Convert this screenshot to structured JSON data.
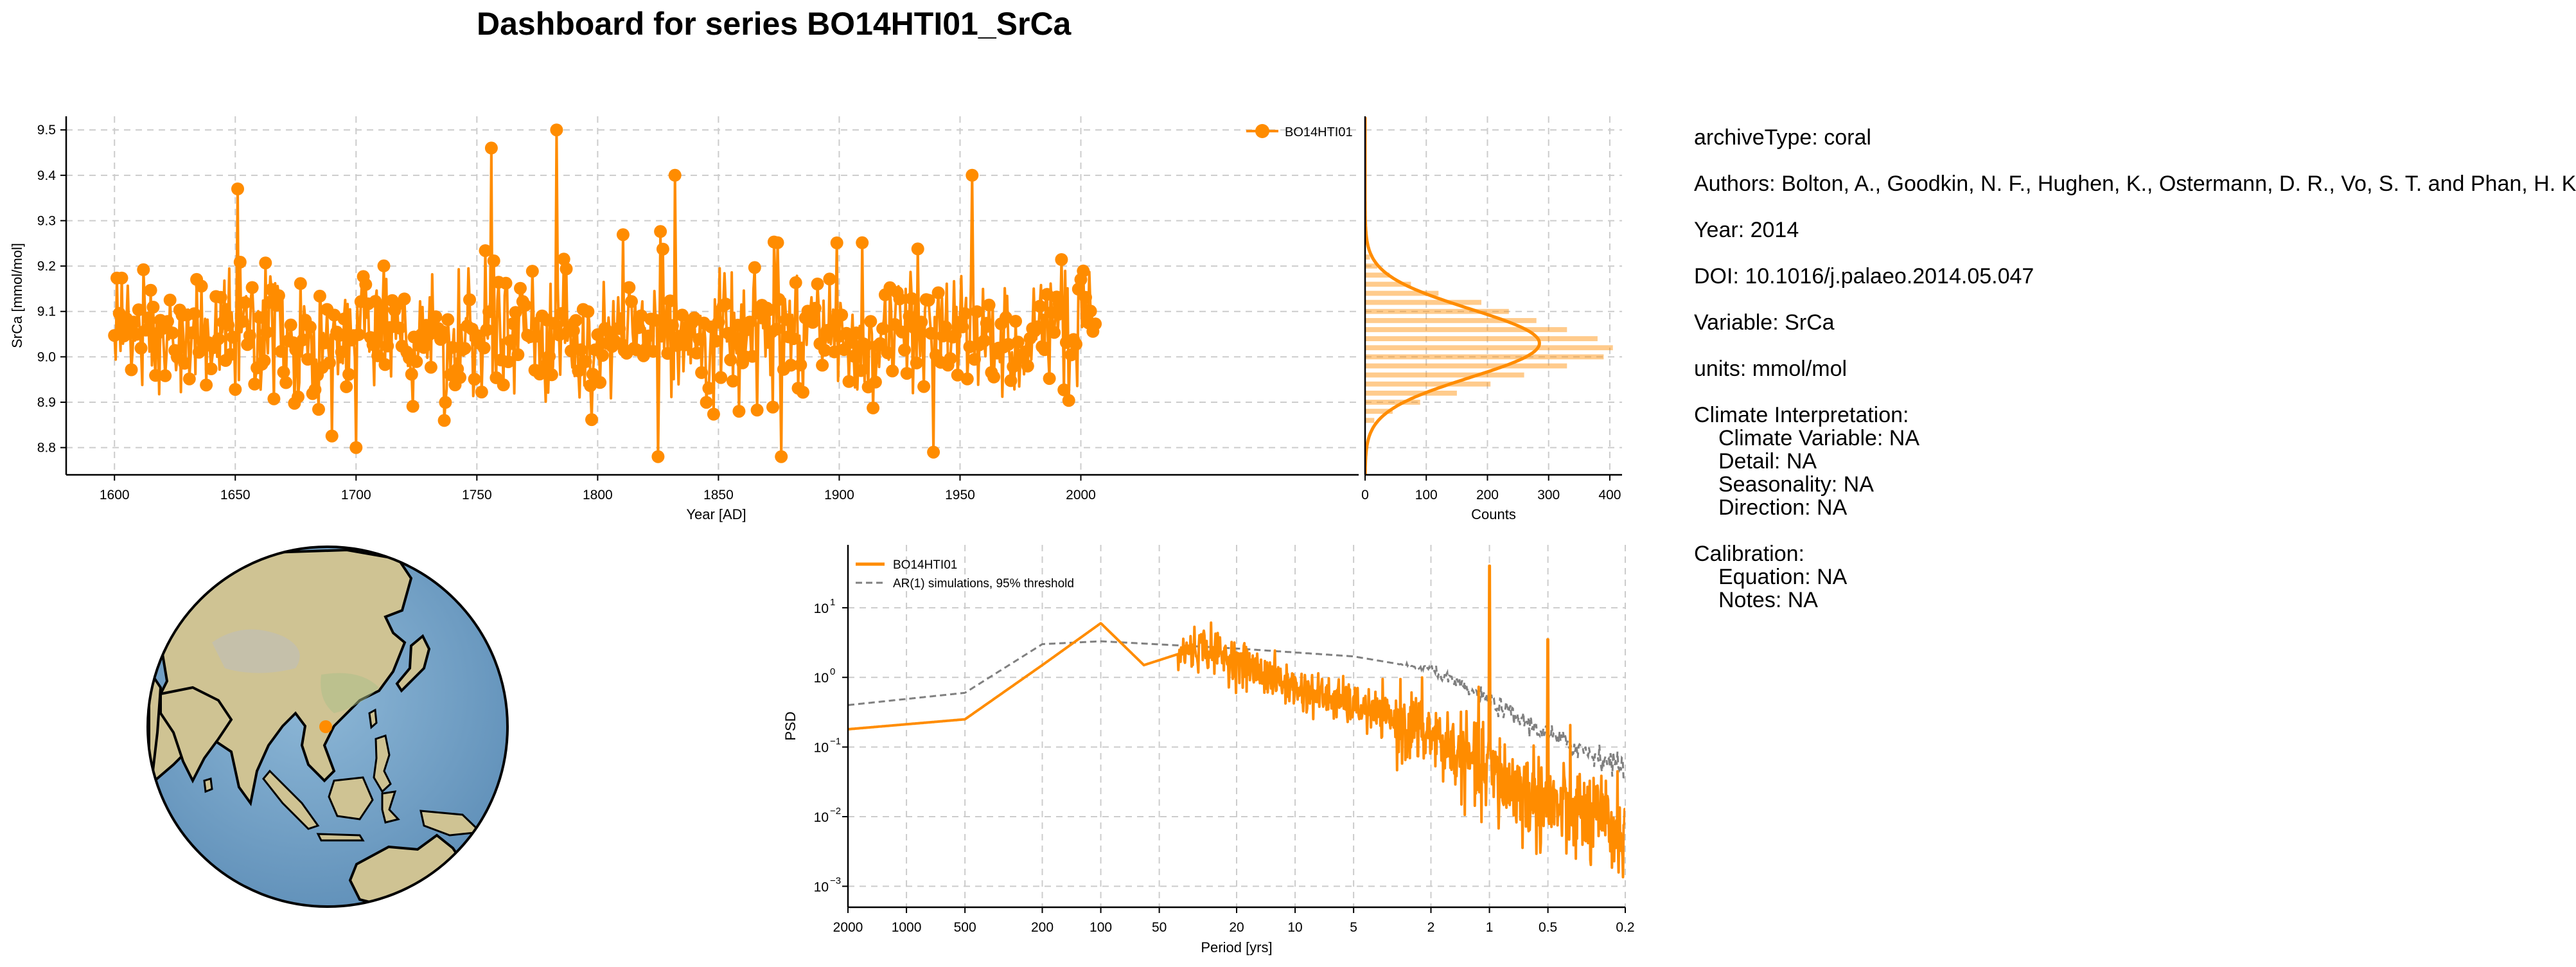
{
  "title": "Dashboard for series BO14HTI01_SrCa",
  "colors": {
    "series": "#ff8c00",
    "threshold": "#808080",
    "grid": "#cccccc",
    "land": "#d9cfa0",
    "ocean": "#6d9ec3"
  },
  "metadata": {
    "archiveType": "archiveType: coral",
    "authors": "Authors: Bolton, A., Goodkin, N. F., Hughen, K., Ostermann, D. R., Vo, S. T. and Phan, H. K.",
    "year": "Year: 2014",
    "doi": "DOI: 10.1016/j.palaeo.2014.05.047",
    "variable": "Variable: SrCa",
    "units": "units: mmol/mol",
    "climate_interpretation": {
      "heading": "Climate Interpretation:",
      "climate_variable": "Climate Variable: NA",
      "detail": "Detail: NA",
      "seasonality": "Seasonality: NA",
      "direction": "Direction: NA"
    },
    "calibration": {
      "heading": "Calibration:",
      "equation": "Equation: NA",
      "notes": "Notes: NA"
    }
  },
  "map": {
    "site_marker": "site-marker",
    "icon": "globe-map"
  },
  "chart_data": [
    {
      "type": "line",
      "id": "timeseries",
      "series": [
        {
          "name": "BO14HTI01",
          "marker": "circle"
        }
      ],
      "x_range": [
        1600,
        2006
      ],
      "xlabel": "Year [AD]",
      "ylabel": "SrCa [mmol/mol]",
      "xlim": [
        1580,
        2115
      ],
      "ylim": [
        8.74,
        9.53
      ],
      "xticks": [
        "1600",
        "1650",
        "1700",
        "1750",
        "1800",
        "1850",
        "1900",
        "1950",
        "2000"
      ],
      "yticks": [
        "8.8",
        "8.9",
        "9.0",
        "9.1",
        "9.2",
        "9.3",
        "9.4",
        "9.5"
      ],
      "mean": 9.05,
      "notable_peaks": [
        {
          "x": 1651,
          "y": 9.37
        },
        {
          "x": 1756,
          "y": 9.46
        },
        {
          "x": 1783,
          "y": 9.5
        },
        {
          "x": 1832,
          "y": 9.4
        },
        {
          "x": 1955,
          "y": 9.4
        }
      ],
      "notable_troughs": [
        {
          "x": 1700,
          "y": 8.8
        },
        {
          "x": 1825,
          "y": 8.78
        },
        {
          "x": 1876,
          "y": 8.78
        },
        {
          "x": 1939,
          "y": 8.79
        }
      ],
      "grid": true,
      "legend": "top-right"
    },
    {
      "type": "bar",
      "id": "histogram",
      "orientation": "horizontal",
      "xlabel": "Counts",
      "xlim": [
        0,
        420
      ],
      "xticks": [
        "0",
        "100",
        "200",
        "300",
        "400"
      ],
      "ylim": [
        8.74,
        9.53
      ],
      "bins": [
        {
          "y": 8.86,
          "count": 15
        },
        {
          "y": 8.88,
          "count": 45
        },
        {
          "y": 8.9,
          "count": 90
        },
        {
          "y": 8.92,
          "count": 150
        },
        {
          "y": 8.94,
          "count": 205
        },
        {
          "y": 8.96,
          "count": 260
        },
        {
          "y": 8.98,
          "count": 330
        },
        {
          "y": 9.0,
          "count": 390
        },
        {
          "y": 9.02,
          "count": 405
        },
        {
          "y": 9.04,
          "count": 380
        },
        {
          "y": 9.06,
          "count": 330
        },
        {
          "y": 9.08,
          "count": 280
        },
        {
          "y": 9.1,
          "count": 235
        },
        {
          "y": 9.12,
          "count": 190
        },
        {
          "y": 9.14,
          "count": 120
        },
        {
          "y": 9.16,
          "count": 75
        },
        {
          "y": 9.18,
          "count": 40
        },
        {
          "y": 9.2,
          "count": 20
        },
        {
          "y": 9.22,
          "count": 8
        }
      ],
      "kde": {
        "peak_y": 9.03,
        "peak_count": 285,
        "sd": 0.075
      },
      "grid": true
    },
    {
      "type": "line",
      "id": "spectrum",
      "series": [
        {
          "name": "BO14HTI01",
          "style": "solid"
        },
        {
          "name": "AR(1) simulations, 95% threshold",
          "style": "dashed"
        }
      ],
      "xlabel": "Period [yrs]",
      "ylabel": "PSD",
      "x_scale": "log-reversed",
      "y_scale": "log",
      "xlim": [
        2000,
        0.2
      ],
      "ylim": [
        0.0005,
        80
      ],
      "xticks": [
        "2000",
        "1000",
        "500",
        "200",
        "100",
        "50",
        "20",
        "10",
        "5",
        "2",
        "1",
        "0.5",
        "0.2"
      ],
      "yticks": [
        "10^1",
        "10^0",
        "10^-1",
        "10^-2",
        "10^-3"
      ],
      "psd_key_points": [
        {
          "x": 2000,
          "y": 0.18
        },
        {
          "x": 500,
          "y": 0.25
        },
        {
          "x": 200,
          "y": 1.5
        },
        {
          "x": 100,
          "y": 6.0
        },
        {
          "x": 60,
          "y": 1.5
        },
        {
          "x": 30,
          "y": 2.8
        },
        {
          "x": 10,
          "y": 0.7
        },
        {
          "x": 5,
          "y": 0.4
        },
        {
          "x": 2,
          "y": 0.15
        },
        {
          "x": 1,
          "y": 0.04
        },
        {
          "x": 0.5,
          "y": 0.015
        },
        {
          "x": 0.2,
          "y": 0.006
        }
      ],
      "psd_spikes": [
        {
          "x": 1,
          "y": 40
        },
        {
          "x": 0.5,
          "y": 3.5
        }
      ],
      "ar1_key_points": [
        {
          "x": 2000,
          "y": 0.4
        },
        {
          "x": 500,
          "y": 0.6
        },
        {
          "x": 200,
          "y": 3.0
        },
        {
          "x": 100,
          "y": 3.3
        },
        {
          "x": 20,
          "y": 2.6
        },
        {
          "x": 5,
          "y": 2.0
        },
        {
          "x": 2,
          "y": 1.3
        },
        {
          "x": 1,
          "y": 0.45
        },
        {
          "x": 0.5,
          "y": 0.15
        },
        {
          "x": 0.2,
          "y": 0.05
        }
      ],
      "grid": true,
      "legend": "top-left"
    }
  ]
}
